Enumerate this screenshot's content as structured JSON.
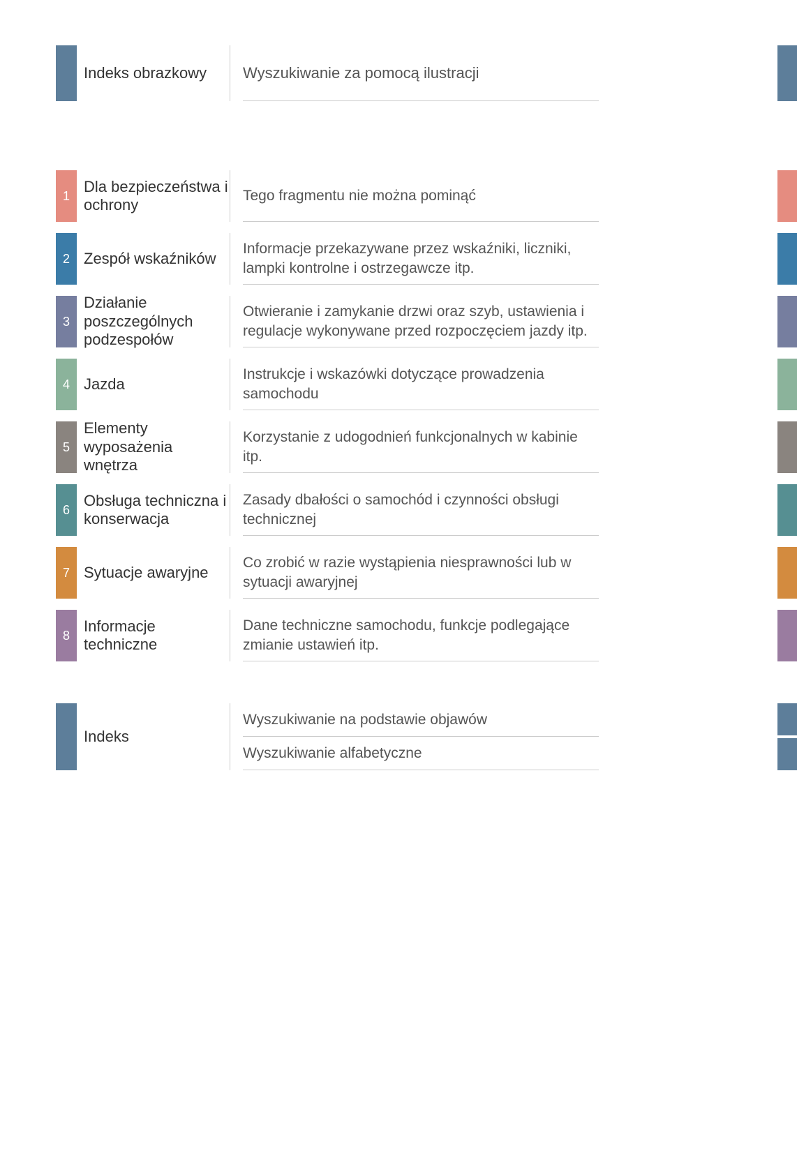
{
  "colors": {
    "steel_blue": "#5d7e9a",
    "salmon": "#e58c80",
    "blue": "#3b7ca8",
    "slate": "#767e9f",
    "sage": "#8bb39b",
    "gray": "#8a847f",
    "teal": "#568f92",
    "orange": "#d38b3f",
    "mauve": "#9a7ca0"
  },
  "header": {
    "title": "Indeks obrazkowy",
    "description": "Wyszukiwanie za pomocą ilustracji",
    "left_tab_color": "#5d7e9a",
    "right_tab_color": "#5d7e9a"
  },
  "sections": [
    {
      "num": "1",
      "title": "Dla bezpieczeństwa i ochrony",
      "description": "Tego fragmentu nie można pominąć",
      "color": "#e58c80"
    },
    {
      "num": "2",
      "title": "Zespół wskaźników",
      "description": "Informacje przekazywane przez wskaźniki, liczniki, lampki kontrolne i ostrzegawcze itp.",
      "color": "#3b7ca8"
    },
    {
      "num": "3",
      "title": "Działanie poszczególnych podzespołów",
      "description": "Otwieranie i zamykanie drzwi oraz szyb, ustawienia i regulacje wykonywane przed rozpoczęciem jazdy itp.",
      "color": "#767e9f"
    },
    {
      "num": "4",
      "title": "Jazda",
      "description": "Instrukcje i wskazówki dotyczące prowadzenia samochodu",
      "color": "#8bb39b"
    },
    {
      "num": "5",
      "title": "Elementy wyposażenia wnętrza",
      "description": "Korzystanie z udogodnień funkcjonalnych w kabinie itp.",
      "color": "#8a847f"
    },
    {
      "num": "6",
      "title": "Obsługa techniczna i konserwacja",
      "description": "Zasady dbałości o samochód i czynności obsługi technicznej",
      "color": "#568f92"
    },
    {
      "num": "7",
      "title": "Sytuacje awaryjne",
      "description": "Co zrobić w razie wystąpienia niesprawności lub w sytuacji awaryjnej",
      "color": "#d38b3f"
    },
    {
      "num": "8",
      "title": "Informacje techniczne",
      "description": "Dane techniczne samochodu, funkcje podlegające zmianie ustawień itp.",
      "color": "#9a7ca0"
    }
  ],
  "footer": {
    "title": "Indeks",
    "desc1": "Wyszukiwanie na podstawie objawów",
    "desc2": "Wyszukiwanie alfabetyczne",
    "left_tab_color": "#5d7e9a",
    "right_tab_1_color": "#5d7e9a",
    "right_tab_2_color": "#5d7e9a"
  }
}
